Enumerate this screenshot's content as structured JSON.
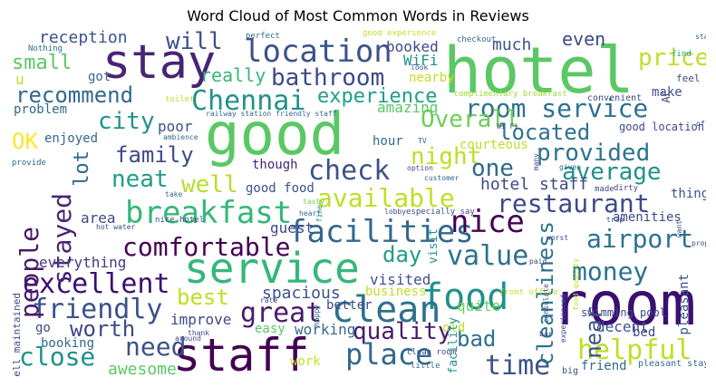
{
  "chart_data": {
    "type": "wordcloud",
    "title": "Word Cloud of Most Common Words in Reviews",
    "words": [
      {
        "text": "hotel",
        "color": "#5ac864"
      },
      {
        "text": "good",
        "color": "#5ac864"
      },
      {
        "text": "room",
        "color": "#3b0f70"
      },
      {
        "text": "stay",
        "color": "#482475"
      },
      {
        "text": "service",
        "color": "#35b779"
      },
      {
        "text": "staff",
        "color": "#440154"
      },
      {
        "text": "food",
        "color": "#21918c"
      },
      {
        "text": "clean",
        "color": "#2c728e"
      },
      {
        "text": "location",
        "color": "#3b528b"
      },
      {
        "text": "breakfast",
        "color": "#35b779"
      },
      {
        "text": "facilities",
        "color": "#31688e"
      },
      {
        "text": "nice",
        "color": "#440154"
      },
      {
        "text": "Chennai",
        "color": "#21918c"
      },
      {
        "text": "room service",
        "color": "#2c728e"
      },
      {
        "text": "place",
        "color": "#31688e"
      },
      {
        "text": "comfortable",
        "color": "#440154"
      },
      {
        "text": "great",
        "color": "#481a6c"
      },
      {
        "text": "excellent",
        "color": "#3b0f70"
      },
      {
        "text": "friendly",
        "color": "#3b528b"
      },
      {
        "text": "restaurant",
        "color": "#3e4989"
      },
      {
        "text": "available",
        "color": "#bddf26"
      },
      {
        "text": "value",
        "color": "#2c728e"
      },
      {
        "text": "quality",
        "color": "#481a6c"
      },
      {
        "text": "airport",
        "color": "#2c728e"
      },
      {
        "text": "money",
        "color": "#2c728e"
      },
      {
        "text": "helpful",
        "color": "#bddf26"
      },
      {
        "text": "time",
        "color": "#3b528b"
      },
      {
        "text": "close",
        "color": "#21918c"
      },
      {
        "text": "need",
        "color": "#3b528b"
      },
      {
        "text": "people",
        "color": "#481a6c"
      },
      {
        "text": "stayed",
        "color": "#482475"
      },
      {
        "text": "check",
        "color": "#3b528b"
      },
      {
        "text": "provided",
        "color": "#2c728e"
      },
      {
        "text": "average",
        "color": "#21918c"
      },
      {
        "text": "recommend",
        "color": "#31688e"
      },
      {
        "text": "bathroom",
        "color": "#3e4989"
      },
      {
        "text": "city",
        "color": "#21918c"
      },
      {
        "text": "experience",
        "color": "#1f9e89"
      },
      {
        "text": "Overall",
        "color": "#6ece58"
      },
      {
        "text": "located",
        "color": "#2c728e"
      },
      {
        "text": "night",
        "color": "#bddf26"
      },
      {
        "text": "one",
        "color": "#31688e"
      },
      {
        "text": "family",
        "color": "#3e4989"
      },
      {
        "text": "neat",
        "color": "#1f9e89"
      },
      {
        "text": "well",
        "color": "#b5de2b"
      },
      {
        "text": "price",
        "color": "#bddf26"
      },
      {
        "text": "OK",
        "color": "#fde725"
      },
      {
        "text": "small",
        "color": "#5ac864"
      },
      {
        "text": "will",
        "color": "#3b528b"
      },
      {
        "text": "best",
        "color": "#bddf26"
      },
      {
        "text": "worth",
        "color": "#3e4989"
      },
      {
        "text": "bad",
        "color": "#2c728e"
      },
      {
        "text": "day",
        "color": "#1f9e89"
      },
      {
        "text": "cleanliness",
        "color": "#2c728e"
      },
      {
        "text": "near",
        "color": "#3b528b"
      },
      {
        "text": "lot",
        "color": "#31688e"
      },
      {
        "text": "really",
        "color": "#35b779"
      },
      {
        "text": "even",
        "color": "#3e4989"
      },
      {
        "text": "hotel staff",
        "color": "#3e4989"
      },
      {
        "text": "much",
        "color": "#3b528b"
      },
      {
        "text": "spacious",
        "color": "#3b528b"
      },
      {
        "text": "awesome",
        "color": "#5ac864"
      },
      {
        "text": "everything",
        "color": "#443983"
      },
      {
        "text": "area",
        "color": "#3e4989"
      },
      {
        "text": "poor",
        "color": "#3b528b"
      },
      {
        "text": "reception",
        "color": "#3b528b"
      },
      {
        "text": "booked",
        "color": "#3e4989"
      },
      {
        "text": "WiFi",
        "color": "#21918c"
      },
      {
        "text": "improve",
        "color": "#3e4989"
      },
      {
        "text": "working",
        "color": "#31688e"
      },
      {
        "text": "courteous",
        "color": "#bddf26"
      },
      {
        "text": "amenities",
        "color": "#3e4989"
      },
      {
        "text": "thing",
        "color": "#3b528b"
      },
      {
        "text": "good food",
        "color": "#3b528b"
      },
      {
        "text": "guest",
        "color": "#3e4989"
      },
      {
        "text": "visited",
        "color": "#3b528b"
      },
      {
        "text": "quite",
        "color": "#6ece58"
      },
      {
        "text": "business",
        "color": "#bddf26"
      },
      {
        "text": "decent",
        "color": "#3b528b"
      },
      {
        "text": "amazing",
        "color": "#5ac864"
      },
      {
        "text": "nearby",
        "color": "#bddf26"
      },
      {
        "text": "got",
        "color": "#31688e"
      },
      {
        "text": "hour",
        "color": "#31688e"
      },
      {
        "text": "though",
        "color": "#482475"
      },
      {
        "text": "better",
        "color": "#3e4989"
      },
      {
        "text": "go",
        "color": "#3e4989"
      },
      {
        "text": "booking",
        "color": "#31688e"
      },
      {
        "text": "problem",
        "color": "#31688e"
      },
      {
        "text": "enjoyed",
        "color": "#31688e"
      },
      {
        "text": "make",
        "color": "#3b528b"
      },
      {
        "text": "bed",
        "color": "#3e4989"
      },
      {
        "text": "friend",
        "color": "#31688e"
      },
      {
        "text": "pleasant",
        "color": "#3b528b"
      },
      {
        "text": "old",
        "color": "#bddf26"
      },
      {
        "text": "easy",
        "color": "#5ac864"
      },
      {
        "text": "work",
        "color": "#bddf26"
      },
      {
        "text": "facility",
        "color": "#21918c"
      },
      {
        "text": "visit",
        "color": "#21918c"
      },
      {
        "text": "convenient",
        "color": "#3e4989"
      },
      {
        "text": "good location",
        "color": "#3e4989"
      },
      {
        "text": "AC",
        "color": "#3e4989"
      },
      {
        "text": "feel",
        "color": "#3e4989"
      },
      {
        "text": "swimming pool",
        "color": "#3e4989"
      },
      {
        "text": "well maintained",
        "color": "#3e4989"
      },
      {
        "text": "railway station friendly staff",
        "color": "#31688e"
      },
      {
        "text": "complimentary breakfast",
        "color": "#a0da39"
      },
      {
        "text": "pleasant stay",
        "color": "#31688e"
      },
      {
        "text": "good experience",
        "color": "#bddf26"
      },
      {
        "text": "Nothing",
        "color": "#31688e"
      },
      {
        "text": "perfect",
        "color": "#31688e"
      },
      {
        "text": "checkout",
        "color": "#31688e"
      },
      {
        "text": "staying",
        "color": "#31688e"
      },
      {
        "text": "find",
        "color": "#1f9e89"
      },
      {
        "text": "look",
        "color": "#3e4989"
      },
      {
        "text": "toilet",
        "color": "#bddf26"
      },
      {
        "text": "ambience",
        "color": "#31688e"
      },
      {
        "text": "Wi Fi",
        "color": "#3e4989"
      },
      {
        "text": "offer",
        "color": "#3e4989"
      },
      {
        "text": "provide",
        "color": "#31688e"
      },
      {
        "text": "TV",
        "color": "#31688e"
      },
      {
        "text": "option",
        "color": "#3e4989"
      },
      {
        "text": "customer",
        "color": "#31688e"
      },
      {
        "text": "many",
        "color": "#3e4989"
      },
      {
        "text": "given",
        "color": "#31688e"
      },
      {
        "text": "made",
        "color": "#3e4989"
      },
      {
        "text": "dirty",
        "color": "#3e4989"
      },
      {
        "text": "take",
        "color": "#31688e"
      },
      {
        "text": "heart",
        "color": "#31688e"
      },
      {
        "text": "tasty",
        "color": "#6ece58"
      },
      {
        "text": "fine",
        "color": "#21918c"
      },
      {
        "text": "lobby",
        "color": "#3e4989"
      },
      {
        "text": "especially say",
        "color": "#3e4989"
      },
      {
        "text": "nice hotel",
        "color": "#3e4989"
      },
      {
        "text": "trip",
        "color": "#3e4989"
      },
      {
        "text": "want",
        "color": "#3e4989"
      },
      {
        "text": "hot water",
        "color": "#3e4989"
      },
      {
        "text": "worst",
        "color": "#3e4989"
      },
      {
        "text": "property",
        "color": "#3e4989"
      },
      {
        "text": "food quality",
        "color": "#bddf26"
      },
      {
        "text": "paid",
        "color": "#3e4989"
      },
      {
        "text": "happy",
        "color": "#31688e"
      },
      {
        "text": "rate",
        "color": "#3e4989"
      },
      {
        "text": "thank",
        "color": "#3e4989"
      },
      {
        "text": "around",
        "color": "#3e4989"
      },
      {
        "text": "clean room",
        "color": "#3e4989"
      },
      {
        "text": "front office",
        "color": "#bddf26"
      },
      {
        "text": "consulate",
        "color": "#3e4989"
      },
      {
        "text": "experienced",
        "color": "#3e4989"
      },
      {
        "text": "bar",
        "color": "#3e4989"
      },
      {
        "text": "little",
        "color": "#31688e"
      },
      {
        "text": "big",
        "color": "#3e4989"
      },
      {
        "text": "u",
        "color": "#bddf26"
      }
    ]
  }
}
